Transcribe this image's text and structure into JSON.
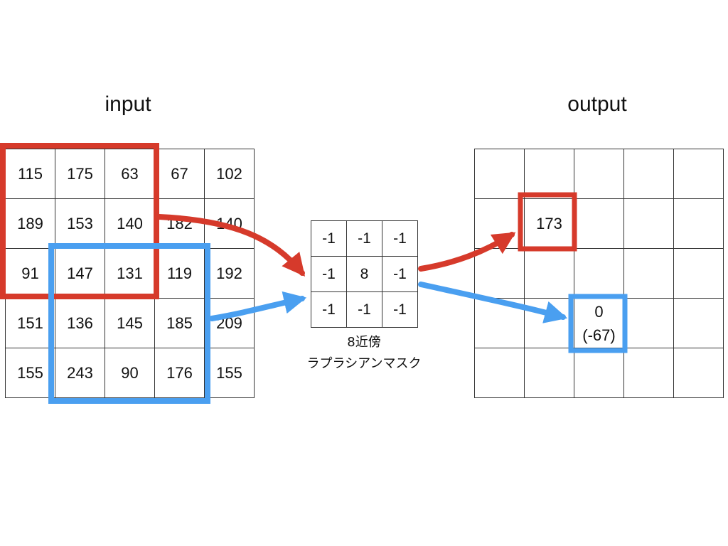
{
  "input": {
    "title": "input",
    "rows": [
      [
        "115",
        "175",
        "63",
        "67",
        "102"
      ],
      [
        "189",
        "153",
        "140",
        "182",
        "140"
      ],
      [
        "91",
        "147",
        "131",
        "119",
        "192"
      ],
      [
        "151",
        "136",
        "145",
        "185",
        "209"
      ],
      [
        "155",
        "243",
        "90",
        "176",
        "155"
      ]
    ]
  },
  "kernel": {
    "rows": [
      [
        "-1",
        "-1",
        "-1"
      ],
      [
        "-1",
        "8",
        "-1"
      ],
      [
        "-1",
        "-1",
        "-1"
      ]
    ],
    "caption_line1": "8近傍",
    "caption_line2": "ラプラシアンマスク"
  },
  "output": {
    "title": "output",
    "red_value": "173",
    "blue_value": "0",
    "blue_raw": "(-67)"
  },
  "colors": {
    "red": "#d63a2b",
    "blue": "#4a9ff0"
  }
}
